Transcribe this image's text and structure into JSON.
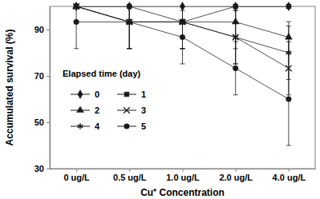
{
  "chart_data": {
    "type": "line",
    "x_label": "Cu⁺ Concentration",
    "y_label": "Accumulated survival (%)",
    "legend_title": "Elapsed time (day)",
    "legend": "left",
    "categories": [
      "0 ug/L",
      "0.5 ug/L",
      "1.0 ug/L",
      "2.0 ug/L",
      "4.0 ug/L"
    ],
    "ylim": [
      30,
      100
    ],
    "yticks": [
      30,
      50,
      70,
      90
    ],
    "grid": false,
    "series": [
      {
        "name": "0",
        "color": "#1a1a1a",
        "marker": "diamond",
        "values": [
          100,
          100,
          100,
          100,
          100
        ],
        "errors": [
          0,
          0,
          0,
          0,
          0
        ]
      },
      {
        "name": "1",
        "color": "#1a1a1a",
        "marker": "square",
        "values": [
          100,
          100,
          93.3,
          100,
          100
        ],
        "errors": [
          0,
          0,
          11.5,
          0,
          0
        ]
      },
      {
        "name": "2",
        "color": "#1a1a1a",
        "marker": "triangle",
        "values": [
          100,
          93.3,
          93.3,
          93.3,
          86.7
        ],
        "errors": [
          0,
          11.5,
          11.5,
          11.5,
          6.7
        ]
      },
      {
        "name": "3",
        "color": "#1a1a1a",
        "marker": "x",
        "values": [
          100,
          93.3,
          93.3,
          86.7,
          73.3
        ],
        "errors": [
          0,
          11.5,
          11.5,
          11.5,
          11.5
        ]
      },
      {
        "name": "4",
        "color": "#1a1a1a",
        "marker": "asterisk",
        "values": [
          100,
          93.3,
          93.3,
          86.7,
          80
        ],
        "errors": [
          0,
          11.5,
          11.5,
          11.5,
          11.5
        ]
      },
      {
        "name": "5",
        "color": "#1a1a1a",
        "marker": "circle",
        "values": [
          93.3,
          93.3,
          86.7,
          73.3,
          60
        ],
        "errors": [
          11.5,
          11.5,
          11.5,
          11.5,
          20
        ]
      }
    ]
  }
}
